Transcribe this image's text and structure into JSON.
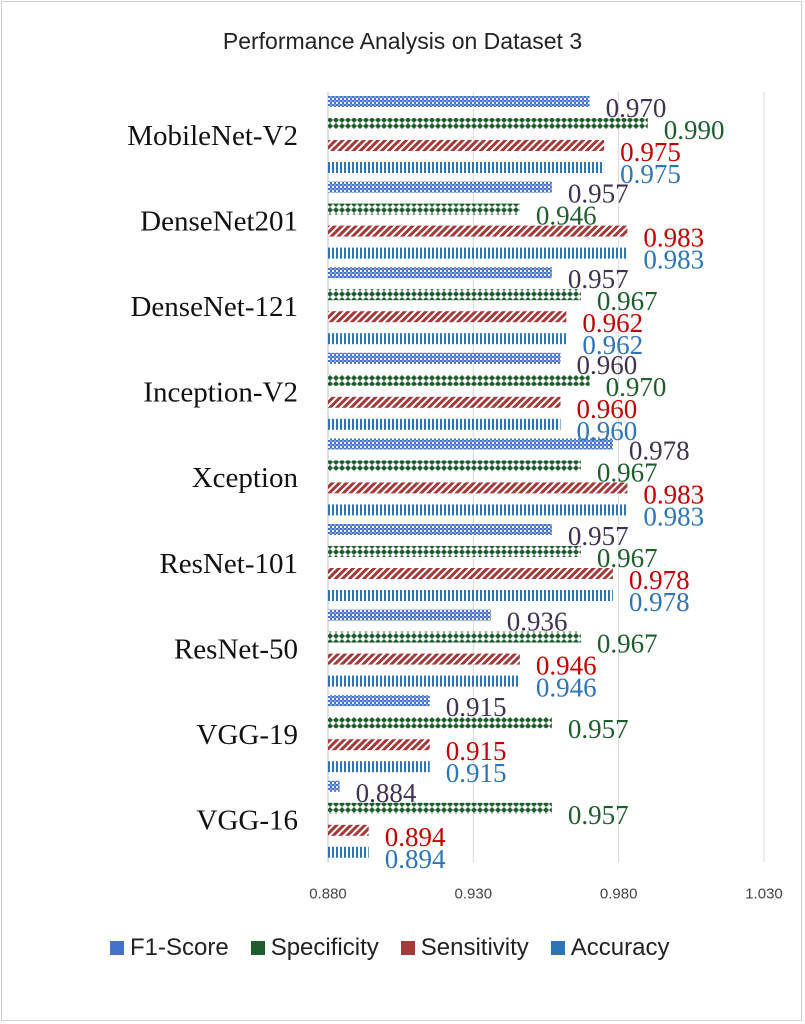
{
  "chart_data": {
    "type": "bar",
    "orientation": "horizontal",
    "title": "Performance Analysis on Dataset 3",
    "xlim": [
      0.88,
      1.03
    ],
    "xticks": [
      "0.880",
      "0.930",
      "0.980",
      "1.030"
    ],
    "grid": true,
    "legend_position": "bottom",
    "categories": [
      "MobileNet-V2",
      "DenseNet201",
      "DenseNet-121",
      "Inception-V2",
      "Xception",
      "ResNet-101",
      "ResNet-50",
      "VGG-19",
      "VGG-16"
    ],
    "series": [
      {
        "name": "F1-Score",
        "color": "#4472C4",
        "label_color": "#403151",
        "values": [
          0.97,
          0.957,
          0.957,
          0.96,
          0.978,
          0.957,
          0.936,
          0.915,
          0.884
        ],
        "labels": [
          "0.970",
          "0.957",
          "0.957",
          "0.960",
          "0.978",
          "0.957",
          "0.936",
          "0.915",
          "0.884"
        ]
      },
      {
        "name": "Specificity",
        "color": "#1E5E2E",
        "label_color": "#1E5E2E",
        "values": [
          0.99,
          0.946,
          0.967,
          0.97,
          0.967,
          0.967,
          0.967,
          0.957,
          0.957
        ],
        "labels": [
          "0.990",
          "0.946",
          "0.967",
          "0.970",
          "0.967",
          "0.967",
          "0.967",
          "0.957",
          "0.957"
        ]
      },
      {
        "name": "Sensitivity",
        "color": "#A33A3A",
        "label_color": "#C00000",
        "values": [
          0.975,
          0.983,
          0.962,
          0.96,
          0.983,
          0.978,
          0.946,
          0.915,
          0.894
        ],
        "labels": [
          "0.975",
          "0.983",
          "0.962",
          "0.960",
          "0.983",
          "0.978",
          "0.946",
          "0.915",
          "0.894"
        ]
      },
      {
        "name": "Accuracy",
        "color": "#2E75B6",
        "label_color": "#2E75B6",
        "values": [
          0.975,
          0.983,
          0.962,
          0.96,
          0.983,
          0.978,
          0.946,
          0.915,
          0.894
        ],
        "labels": [
          "0.975",
          "0.983",
          "0.962",
          "0.960",
          "0.983",
          "0.978",
          "0.946",
          "0.915",
          "0.894"
        ]
      }
    ]
  }
}
